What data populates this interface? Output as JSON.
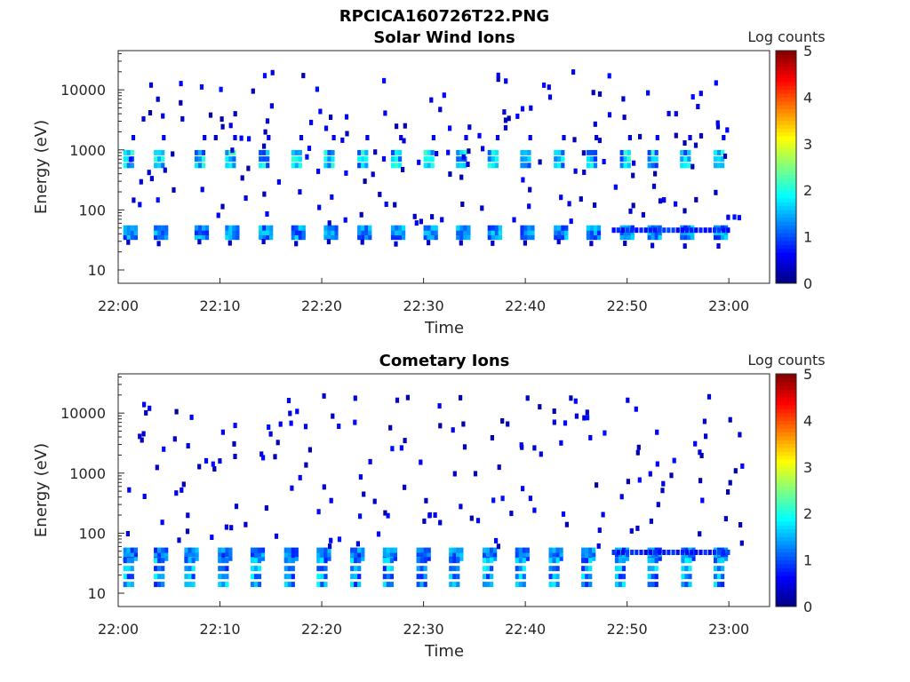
{
  "figure_title": "RPCICA160726T22.PNG",
  "colors": {
    "colormap": [
      "#000080",
      "#0000ff",
      "#0080ff",
      "#00ffff",
      "#80ff80",
      "#ffff00",
      "#ff8000",
      "#ff0000",
      "#800000"
    ],
    "axis": "#262626",
    "background": "#ffffff"
  },
  "chart_data": [
    {
      "type": "heatmap",
      "title": "Solar Wind Ions",
      "xlabel": "Time",
      "ylabel": "Energy (eV)",
      "yscale": "log",
      "ylim": [
        6,
        45000
      ],
      "xlim": [
        "22:00",
        "23:04"
      ],
      "xticks": [
        "22:00",
        "22:10",
        "22:20",
        "22:30",
        "22:40",
        "22:50",
        "23:00"
      ],
      "yticks": [
        "10",
        "100",
        "1000",
        "10000"
      ],
      "colorbar": {
        "label": "Log counts",
        "min": 0,
        "max": 5,
        "ticks": [
          "0",
          "1",
          "2",
          "3",
          "4",
          "5"
        ]
      },
      "ion_band_eV": [
        35,
        50
      ],
      "peak_band_eV": [
        550,
        900
      ],
      "sweep_times_min": [
        0.5,
        3.5,
        7.5,
        10.5,
        13.8,
        17.0,
        20.2,
        23.5,
        26.8,
        30.0,
        33.2,
        36.3,
        39.5,
        42.8,
        46.0,
        49.3,
        52.0,
        55.2,
        58.5
      ],
      "peak_value_log_counts": 2.2,
      "band_value_log_counts": 1.6,
      "grid": false
    },
    {
      "type": "heatmap",
      "title": "Cometary Ions",
      "xlabel": "Time",
      "ylabel": "Energy (eV)",
      "yscale": "log",
      "ylim": [
        6,
        45000
      ],
      "xlim": [
        "22:00",
        "23:04"
      ],
      "xticks": [
        "22:00",
        "22:10",
        "22:20",
        "22:30",
        "22:40",
        "22:50",
        "23:00"
      ],
      "yticks": [
        "10",
        "100",
        "1000",
        "10000"
      ],
      "colorbar": {
        "label": "Log counts",
        "min": 0,
        "max": 5,
        "ticks": [
          "0",
          "1",
          "2",
          "3",
          "4",
          "5"
        ]
      },
      "ion_band_eV": [
        38,
        52
      ],
      "low_band_eV": [
        14,
        35
      ],
      "sweep_times_min": [
        0.5,
        3.5,
        6.5,
        9.8,
        13.0,
        16.3,
        19.5,
        22.8,
        26.0,
        29.3,
        32.5,
        35.8,
        39.0,
        42.3,
        45.5,
        48.8,
        52.0,
        55.3,
        58.5
      ],
      "peak_value_log_counts": 1.9,
      "band_value_log_counts": 1.5,
      "grid": false
    }
  ]
}
